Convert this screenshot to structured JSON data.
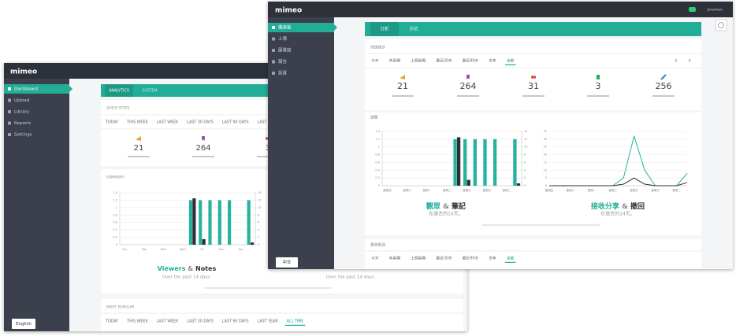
{
  "back": {
    "brand": "mimeo",
    "nav": [
      "Dashboard",
      "Upload",
      "Library",
      "Reports",
      "Settings"
    ],
    "language": "English",
    "tabs": [
      "ANALYTICS",
      "SYSTEM"
    ],
    "filters": [
      "TODAY",
      "THIS WEEK",
      "LAST WEEK",
      "LAST 30 DAYS",
      "LAST 90 DAYS",
      "LAST YEAR",
      "ALL TIME"
    ],
    "quick_stats": {
      "title": "QUICK STATS",
      "stats": [
        21,
        264,
        3
      ]
    },
    "summary": {
      "title": "SUMMARY",
      "chart": {
        "type": "bar",
        "categories": [
          "Thu",
          null,
          "Sat",
          null,
          "Mon",
          null,
          "Wed",
          null,
          "Fri",
          null,
          "Sun",
          null,
          "Tue",
          null
        ],
        "series": [
          {
            "name": "Viewers",
            "color": "#26b29d",
            "values": [
              0,
              0,
              0,
              0,
              0,
              0,
              0,
              1.2,
              1.2,
              1.2,
              1.2,
              1.2,
              0,
              1.2
            ]
          },
          {
            "name": "Notes",
            "color": "#2b2f38",
            "axis": "y2",
            "values": [
              0,
              0,
              0,
              0,
              0,
              0,
              0,
              12.5,
              1.5,
              0,
              0,
              0,
              0,
              0.6
            ]
          }
        ],
        "ylim": [
          0,
          1.4
        ],
        "yticks": [
          0,
          0.2,
          0.4,
          0.6,
          0.8,
          1,
          1.2,
          1.4
        ],
        "y2lim": [
          0,
          14
        ],
        "y2ticks": [
          0,
          2,
          4,
          6,
          8,
          10,
          12,
          14
        ]
      },
      "caption": [
        "Viewers",
        "&",
        "Notes"
      ],
      "subtitle": "Over the past 14 days."
    },
    "most_popular": {
      "title": "MOST POPULAR"
    }
  },
  "front": {
    "brand": "mimeo",
    "user": "joneman",
    "nav": [
      "儀表板",
      "上傳",
      "圖書館",
      "報告",
      "設置"
    ],
    "language": "中文",
    "tabs": [
      "分析",
      "系統"
    ],
    "filters": [
      "今天",
      "本星期",
      "上個星期",
      "最近30天",
      "最近90天",
      "去年",
      "全部"
    ],
    "quick_stats": {
      "title": "快速統計",
      "stats": [
        21,
        264,
        31,
        3,
        256
      ]
    },
    "summary": {
      "title": "總覽",
      "bar_chart": {
        "type": "bar",
        "categories": [
          "星期四",
          null,
          "星期六",
          null,
          "星期一",
          null,
          "星期三",
          null,
          "星期五",
          null,
          "星期日",
          null,
          "星期二",
          null
        ],
        "series": [
          {
            "name": "觀眾",
            "color": "#26b29d",
            "values": [
              0,
              0,
              0,
              0,
              0,
              0,
              0,
              1.2,
              1.2,
              1.2,
              1.2,
              1.2,
              0,
              1.2
            ]
          },
          {
            "name": "筆記",
            "color": "#2b2f38",
            "axis": "y2",
            "values": [
              0,
              0,
              0,
              0,
              0,
              0,
              0,
              12.5,
              1.5,
              0,
              0,
              0,
              0,
              0.6
            ]
          }
        ],
        "ylim": [
          0,
          1.4
        ],
        "yticks": [
          0,
          0.2,
          0.4,
          0.6,
          0.8,
          1,
          1.2,
          1.4
        ],
        "y2lim": [
          0,
          14
        ],
        "y2ticks": [
          0,
          2,
          4,
          6,
          8,
          10,
          12,
          14
        ]
      },
      "line_chart": {
        "type": "line",
        "categories": [
          "星期四",
          null,
          "星期六",
          null,
          "星期一",
          null,
          "星期三",
          null,
          "星期五",
          null,
          "星期日",
          null,
          "星期二",
          null
        ],
        "series": [
          {
            "name": "接收分享",
            "color": "#26b29d",
            "values": [
              0,
              0,
              0,
              0,
              0,
              0,
              0,
              5,
              32,
              10,
              0,
              0,
              0,
              8
            ]
          },
          {
            "name": "撤回",
            "color": "#2b2f38",
            "values": [
              0,
              0,
              0,
              0,
              0,
              0,
              0,
              1,
              5,
              1,
              0,
              0,
              0,
              2
            ]
          }
        ],
        "ylim": [
          0,
          35
        ],
        "yticks": [
          0,
          5,
          10,
          15,
          20,
          25,
          30,
          35
        ]
      },
      "captions": [
        {
          "parts": [
            "觀眾",
            "&",
            "筆記"
          ],
          "subtitle": "在過去的14天。"
        },
        {
          "parts": [
            "接收分享",
            "&",
            "撤回"
          ],
          "subtitle": "在過去的14天。"
        }
      ]
    },
    "most_popular": {
      "title": "最受歡迎"
    }
  }
}
